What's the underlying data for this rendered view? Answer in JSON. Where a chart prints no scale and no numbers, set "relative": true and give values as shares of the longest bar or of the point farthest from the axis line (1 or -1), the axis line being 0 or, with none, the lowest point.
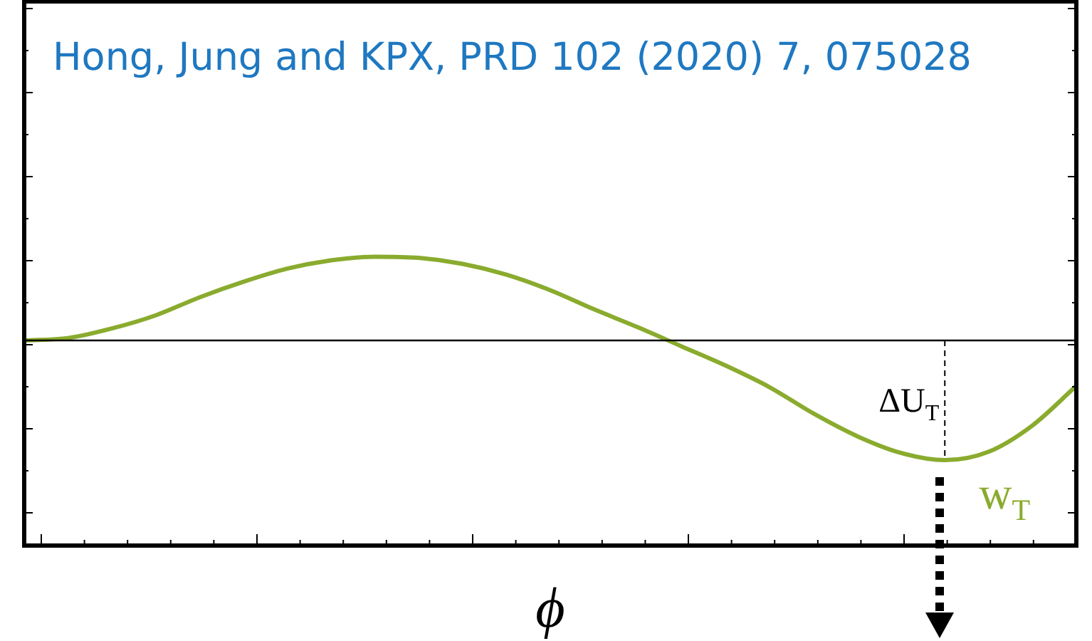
{
  "chart_data": {
    "type": "line",
    "relative": true,
    "xlabel": "ϕ",
    "categories": [
      null,
      null,
      null,
      null,
      null,
      null,
      null,
      null,
      null,
      null,
      null,
      null,
      null,
      null,
      null,
      null,
      null,
      null,
      null,
      null,
      null,
      null,
      null,
      null,
      null
    ],
    "series": [
      {
        "name": "w$_{T}$",
        "color": "#8aab2e",
        "values": [
          0,
          0.02,
          0.1,
          0.21,
          0.36,
          0.49,
          0.6,
          0.67,
          0.7,
          0.69,
          0.64,
          0.55,
          0.42,
          0.26,
          0.11,
          -0.05,
          -0.21,
          -0.39,
          -0.61,
          -0.8,
          -0.94,
          -1,
          -0.93,
          -0.71,
          -0.38
        ]
      }
    ],
    "annotations": [
      "Hong, Jung and KPX, PRD 102 (2020) 7, 075028",
      "ΔU$_{T}$"
    ],
    "legend": false,
    "marker": "none",
    "line_style": "solid"
  }
}
